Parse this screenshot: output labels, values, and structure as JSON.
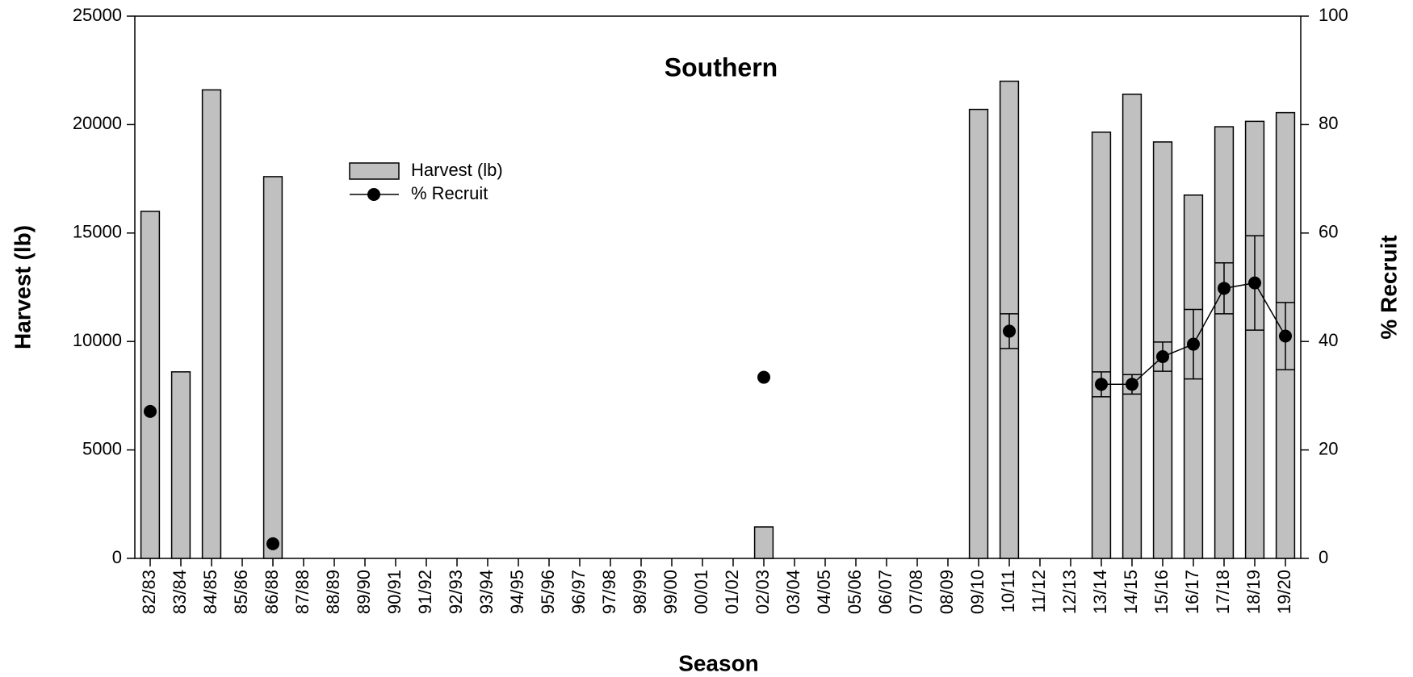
{
  "chart_data": {
    "type": "bar-line",
    "title": "Southern",
    "x_label": "Season",
    "y_label": "Harvest (lb)",
    "y2_label": "% Recruit",
    "categories": [
      "82/83",
      "83/84",
      "84/85",
      "85/86",
      "86/88",
      "87/88",
      "88/89",
      "89/90",
      "90/91",
      "91/92",
      "92/93",
      "93/94",
      "94/95",
      "95/96",
      "96/97",
      "97/98",
      "98/99",
      "99/00",
      "00/01",
      "01/02",
      "02/03",
      "03/04",
      "04/05",
      "05/06",
      "06/07",
      "07/08",
      "08/09",
      "09/10",
      "10/11",
      "11/12",
      "12/13",
      "13/14",
      "14/15",
      "15/16",
      "16/17",
      "17/18",
      "18/19",
      "19/20"
    ],
    "series": [
      {
        "name": "Harvest (lb)",
        "type": "bar",
        "color": "#c0c0c0",
        "axis": "y",
        "values": [
          16000,
          8600,
          21600,
          null,
          17600,
          null,
          null,
          null,
          null,
          null,
          null,
          null,
          null,
          null,
          null,
          null,
          null,
          null,
          null,
          null,
          1450,
          null,
          null,
          null,
          null,
          null,
          null,
          20700,
          22000,
          null,
          null,
          19650,
          21400,
          19200,
          16750,
          19900,
          20150,
          20550
        ]
      },
      {
        "name": "% Recruit",
        "type": "line",
        "color": "#000000",
        "axis": "y2",
        "values": [
          27.1,
          null,
          null,
          null,
          2.7,
          null,
          null,
          null,
          null,
          null,
          null,
          null,
          null,
          null,
          null,
          null,
          null,
          null,
          null,
          null,
          33.4,
          null,
          null,
          null,
          null,
          null,
          null,
          null,
          41.9,
          null,
          null,
          32.1,
          32.1,
          37.2,
          39.5,
          49.8,
          50.8,
          41.0
        ],
        "errors": [
          null,
          null,
          null,
          null,
          null,
          null,
          null,
          null,
          null,
          null,
          null,
          null,
          null,
          null,
          null,
          null,
          null,
          null,
          null,
          null,
          null,
          null,
          null,
          null,
          null,
          null,
          null,
          null,
          3.2,
          null,
          null,
          2.3,
          1.8,
          2.7,
          6.4,
          4.7,
          8.7,
          6.2
        ]
      }
    ],
    "ylim": [
      0,
      25000
    ],
    "yticks": [
      0,
      5000,
      10000,
      15000,
      20000,
      25000
    ],
    "y2lim": [
      0,
      100
    ],
    "y2ticks": [
      0,
      20,
      40,
      60,
      80,
      100
    ]
  }
}
